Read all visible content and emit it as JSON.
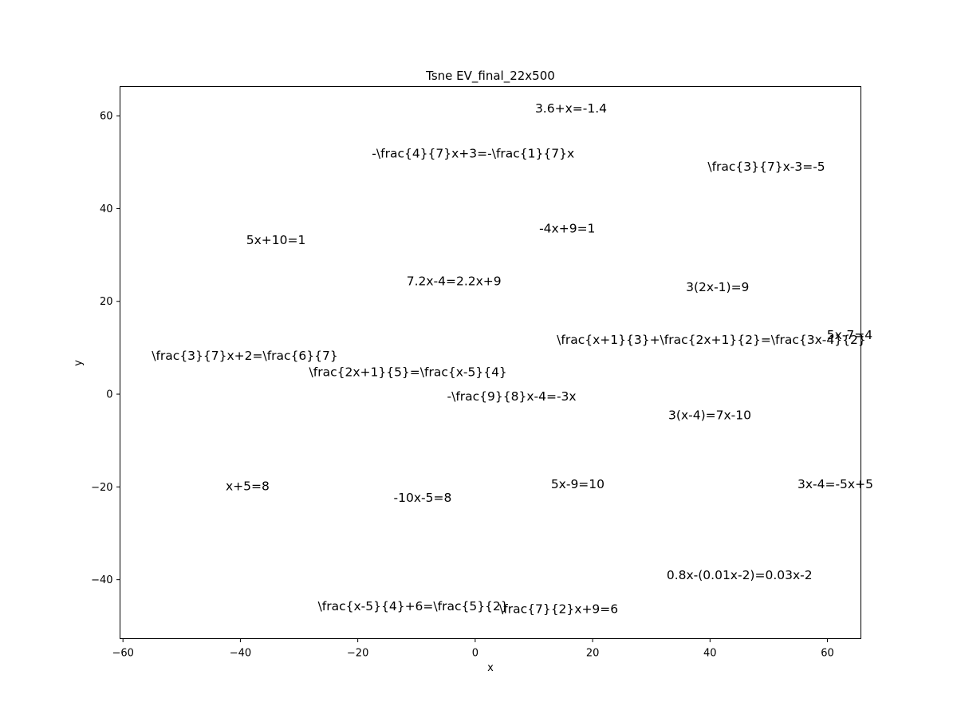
{
  "chart_data": {
    "type": "scatter",
    "title": "Tsne EV_final_22x500",
    "xlabel": "x",
    "ylabel": "y",
    "xlim": [
      -60.5,
      65.7
    ],
    "ylim": [
      -52.7,
      66.3
    ],
    "xticks": [
      -60,
      -40,
      -20,
      0,
      20,
      40,
      60
    ],
    "yticks": [
      -40,
      -20,
      0,
      20,
      40,
      60
    ],
    "grid": false,
    "points": [
      {
        "x": 10.2,
        "y": 60.7,
        "label": "3.6+x=-1.4"
      },
      {
        "x": -17.6,
        "y": 51.0,
        "label": "-\\frac{4}{7}x+3=-\\frac{1}{7}x"
      },
      {
        "x": 39.6,
        "y": 48.2,
        "label": "\\frac{3}{7}x-3=-5"
      },
      {
        "x": 10.9,
        "y": 34.8,
        "label": "-4x+9=1"
      },
      {
        "x": -39.0,
        "y": 32.3,
        "label": "5x+10=1"
      },
      {
        "x": -11.7,
        "y": 23.5,
        "label": "7.2x-4=2.2x+9"
      },
      {
        "x": 35.9,
        "y": 22.2,
        "label": "3(2x-1)=9"
      },
      {
        "x": 59.9,
        "y": 11.9,
        "label": "5x-7=4"
      },
      {
        "x": 13.9,
        "y": 10.8,
        "label": "\\frac{x+1}{3}+\\frac{2x+1}{2}=\\frac{3x-4}{2}"
      },
      {
        "x": -55.1,
        "y": 7.4,
        "label": "\\frac{3}{7}x+2=\\frac{6}{7}"
      },
      {
        "x": -28.3,
        "y": 3.9,
        "label": "\\frac{2x+1}{5}=\\frac{x-5}{4}"
      },
      {
        "x": -4.8,
        "y": -1.4,
        "label": "-\\frac{9}{8}x-4=-3x"
      },
      {
        "x": 32.9,
        "y": -5.4,
        "label": "3(x-4)=7x-10"
      },
      {
        "x": -42.5,
        "y": -20.7,
        "label": "x+5=8"
      },
      {
        "x": 12.9,
        "y": -20.3,
        "label": "5x-9=10"
      },
      {
        "x": 54.9,
        "y": -20.3,
        "label": "3x-4=-5x+5"
      },
      {
        "x": -13.9,
        "y": -23.2,
        "label": "-10x-5=8"
      },
      {
        "x": 32.6,
        "y": -39.9,
        "label": "0.8x-(0.01x-2)=0.03x-2"
      },
      {
        "x": -26.8,
        "y": -46.6,
        "label": "\\frac{x-5}{4}+6=\\frac{5}{2}"
      },
      {
        "x": 4.1,
        "y": -47.2,
        "label": "\\frac{7}{2}x+9=6"
      }
    ]
  }
}
